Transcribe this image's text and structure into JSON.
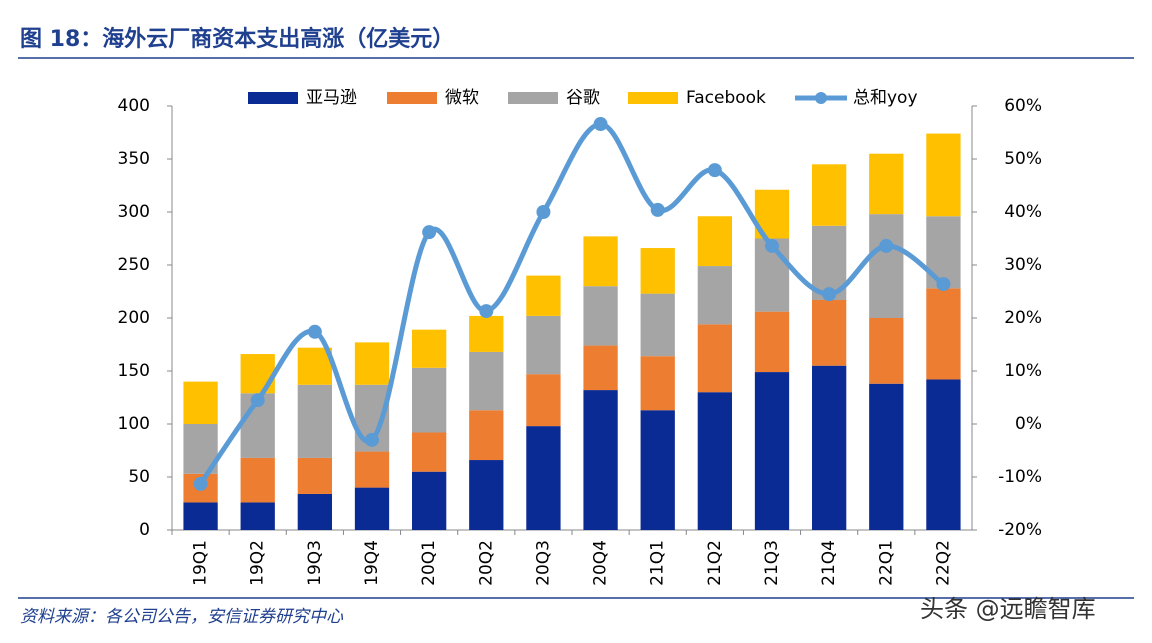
{
  "chart_data": {
    "type": "stacked-bar-line",
    "title": "图 18：海外云厂商资本支出高涨（亿美元）",
    "source": "资料来源：各公司公告，安信证券研究中心",
    "watermark": "头条 @远瞻智库",
    "categories": [
      "19Q1",
      "19Q2",
      "19Q3",
      "19Q4",
      "20Q1",
      "20Q2",
      "20Q3",
      "20Q4",
      "21Q1",
      "21Q2",
      "21Q3",
      "21Q4",
      "22Q1",
      "22Q2"
    ],
    "series": [
      {
        "name": "亚马逊",
        "color": "#0a2a94",
        "values": [
          26,
          26,
          34,
          40,
          55,
          66,
          98,
          132,
          113,
          130,
          149,
          155,
          138,
          142
        ]
      },
      {
        "name": "微软",
        "color": "#ed7d31",
        "values": [
          27,
          42,
          34,
          34,
          37,
          47,
          49,
          42,
          51,
          64,
          57,
          62,
          62,
          86
        ]
      },
      {
        "name": "谷歌",
        "color": "#a5a5a5",
        "values": [
          47,
          61,
          69,
          63,
          61,
          55,
          55,
          56,
          59,
          55,
          69,
          70,
          98,
          68
        ]
      },
      {
        "name": "Facebook",
        "color": "#ffc000",
        "values": [
          40,
          37,
          35,
          40,
          36,
          34,
          38,
          47,
          43,
          47,
          46,
          58,
          57,
          78
        ]
      },
      {
        "name": "总和yoy",
        "color": "#5b9bd5",
        "axis": "y2",
        "values": [
          -11.3,
          4.5,
          17.4,
          -3,
          36.2,
          21.3,
          40,
          56.6,
          40.4,
          47.9,
          33.6,
          24.5,
          33.6,
          26.4
        ]
      }
    ],
    "ylim": [
      0,
      400
    ],
    "yticks": [
      0,
      50,
      100,
      150,
      200,
      250,
      300,
      350,
      400
    ],
    "y2lim": [
      -20,
      60
    ],
    "y2ticks": [
      {
        "value": -20,
        "label": "-20%"
      },
      {
        "value": -10,
        "label": "-10%"
      },
      {
        "value": 0,
        "label": "0%"
      },
      {
        "value": 10,
        "label": "10%"
      },
      {
        "value": 20,
        "label": "20%"
      },
      {
        "value": 30,
        "label": "30%"
      },
      {
        "value": 40,
        "label": "40%"
      },
      {
        "value": 50,
        "label": "50%"
      },
      {
        "value": 60,
        "label": "60%"
      }
    ]
  }
}
